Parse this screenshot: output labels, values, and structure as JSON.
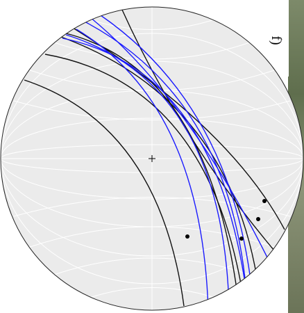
{
  "panel_label": "f)"
}
